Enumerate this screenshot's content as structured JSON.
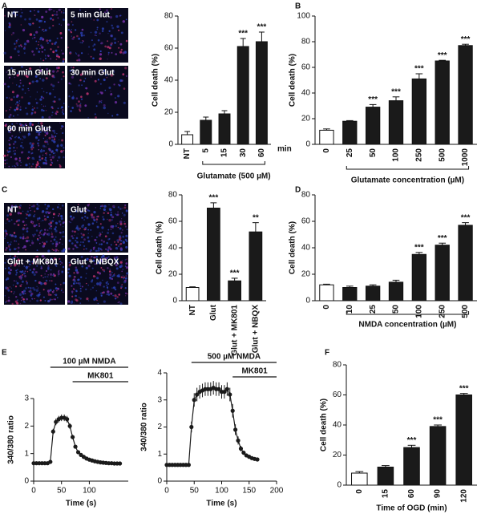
{
  "panel_letters": [
    "A",
    "B",
    "C",
    "D",
    "E",
    "F"
  ],
  "micrographs": {
    "A": [
      "NT",
      "5 min Glut",
      "15 min Glut",
      "30 min Glut",
      "60 min Glut"
    ],
    "C": [
      "NT",
      "Glut",
      "Glut + MK801",
      "Glut + NBQX"
    ]
  },
  "chart_data": [
    {
      "type": "bar",
      "ylabel": "Cell death (%)",
      "xlabel": "Glutamate (500 µM)",
      "x_unit": "min",
      "categories": [
        "NT",
        "5",
        "15",
        "30",
        "60"
      ],
      "values": [
        6,
        15,
        19,
        61,
        64
      ],
      "error": [
        2,
        2,
        2,
        5,
        6
      ],
      "colors": [
        "#ffffff",
        "#1a1a1a",
        "#1a1a1a",
        "#1a1a1a",
        "#1a1a1a"
      ],
      "annotations": [
        null,
        null,
        null,
        "***",
        "***"
      ],
      "ylim": [
        0,
        80
      ],
      "yticks": [
        0,
        20,
        40,
        60,
        80
      ]
    },
    {
      "type": "bar",
      "ylabel": "Cell death (%)",
      "xlabel": "Glutamate concentration (µM)",
      "categories": [
        "0",
        "25",
        "50",
        "100",
        "250",
        "500",
        "1000"
      ],
      "values": [
        11,
        18,
        29,
        34,
        51,
        65,
        77
      ],
      "error": [
        1,
        0.5,
        2,
        3,
        4,
        0.5,
        1
      ],
      "colors": [
        "#ffffff",
        "#1a1a1a",
        "#1a1a1a",
        "#1a1a1a",
        "#1a1a1a",
        "#1a1a1a",
        "#1a1a1a"
      ],
      "annotations": [
        null,
        null,
        "***",
        "***",
        "***",
        "***",
        "***"
      ],
      "ylim": [
        0,
        100
      ],
      "yticks": [
        0,
        20,
        40,
        60,
        80,
        100
      ]
    },
    {
      "type": "bar",
      "ylabel": "Cell death (%)",
      "categories": [
        "NT",
        "Glut",
        "Glut + MK801",
        "Glut + NBQX"
      ],
      "values": [
        10,
        70,
        15,
        52
      ],
      "error": [
        0.5,
        4,
        2,
        7
      ],
      "colors": [
        "#ffffff",
        "#1a1a1a",
        "#1a1a1a",
        "#1a1a1a"
      ],
      "annotations": [
        null,
        "***",
        "***",
        "**"
      ],
      "ylim": [
        0,
        80
      ],
      "yticks": [
        0,
        20,
        40,
        60,
        80
      ]
    },
    {
      "type": "bar",
      "ylabel": "Cell death (%)",
      "xlabel": "NMDA concentration (µM)",
      "categories": [
        "0",
        "10",
        "25",
        "50",
        "100",
        "250",
        "500"
      ],
      "values": [
        12,
        10,
        11,
        14,
        35,
        42,
        57
      ],
      "error": [
        0.5,
        1,
        1,
        1.5,
        1.5,
        1.5,
        2
      ],
      "colors": [
        "#ffffff",
        "#1a1a1a",
        "#1a1a1a",
        "#1a1a1a",
        "#1a1a1a",
        "#1a1a1a",
        "#1a1a1a"
      ],
      "annotations": [
        null,
        null,
        null,
        null,
        "***",
        "***",
        "***"
      ],
      "ylim": [
        0,
        80
      ],
      "yticks": [
        0,
        20,
        40,
        60,
        80
      ]
    },
    {
      "type": "line",
      "ylabel": "340/380 ratio",
      "xlabel": "Time (s)",
      "treatments": [
        {
          "label": "100 µM NMDA",
          "start": 30,
          "end": 170
        },
        {
          "label": "MK801",
          "start": 70,
          "end": 170
        }
      ],
      "x": [
        0,
        5,
        10,
        15,
        20,
        25,
        30,
        35,
        40,
        45,
        50,
        55,
        60,
        65,
        70,
        75,
        80,
        85,
        90,
        95,
        100,
        105,
        110,
        115,
        120,
        125,
        130,
        135,
        140,
        145,
        150,
        155
      ],
      "series": [
        {
          "color": "#1a1a1a",
          "values": [
            0.65,
            0.65,
            0.65,
            0.65,
            0.65,
            0.65,
            0.7,
            1.8,
            2.15,
            2.25,
            2.3,
            2.3,
            2.25,
            2.0,
            1.6,
            1.25,
            1.05,
            0.95,
            0.88,
            0.82,
            0.78,
            0.75,
            0.72,
            0.7,
            0.68,
            0.67,
            0.66,
            0.65,
            0.65,
            0.64,
            0.64,
            0.64
          ],
          "error": [
            0.02,
            0.02,
            0.02,
            0.02,
            0.02,
            0.02,
            0.03,
            0.1,
            0.12,
            0.12,
            0.12,
            0.12,
            0.12,
            0.1,
            0.08,
            0.06,
            0.05,
            0.04,
            0.03,
            0.03,
            0.03,
            0.03,
            0.02,
            0.02,
            0.02,
            0.02,
            0.02,
            0.02,
            0.02,
            0.02,
            0.02,
            0.02
          ]
        }
      ],
      "xlim": [
        0,
        170
      ],
      "xticks": [
        0,
        50,
        100
      ],
      "ylim": [
        0,
        3
      ],
      "yticks": [
        0,
        1,
        2,
        3
      ]
    },
    {
      "type": "line",
      "ylabel": "340/380 ratio",
      "xlabel": "Time (s)",
      "treatments": [
        {
          "label": "500 µM NMDA",
          "start": 45,
          "end": 200
        },
        {
          "label": "MK801",
          "start": 120,
          "end": 200
        }
      ],
      "x": [
        0,
        5,
        10,
        15,
        20,
        25,
        30,
        35,
        40,
        45,
        50,
        55,
        60,
        65,
        70,
        75,
        80,
        85,
        90,
        95,
        100,
        105,
        110,
        115,
        120,
        125,
        130,
        135,
        140,
        145,
        150,
        155,
        160,
        165
      ],
      "series": [
        {
          "color": "#1a1a1a",
          "values": [
            0.6,
            0.6,
            0.6,
            0.6,
            0.6,
            0.6,
            0.6,
            0.6,
            0.6,
            2.0,
            3.0,
            3.2,
            3.3,
            3.35,
            3.4,
            3.4,
            3.4,
            3.45,
            3.4,
            3.4,
            3.3,
            3.3,
            3.4,
            3.2,
            2.6,
            1.9,
            1.5,
            1.2,
            1.05,
            0.95,
            0.9,
            0.85,
            0.82,
            0.8
          ],
          "error": [
            0.03,
            0.03,
            0.03,
            0.03,
            0.03,
            0.03,
            0.03,
            0.03,
            0.03,
            0.2,
            0.25,
            0.25,
            0.25,
            0.25,
            0.25,
            0.25,
            0.25,
            0.25,
            0.25,
            0.25,
            0.25,
            0.25,
            0.25,
            0.25,
            0.25,
            0.2,
            0.15,
            0.1,
            0.08,
            0.06,
            0.05,
            0.05,
            0.04,
            0.04
          ]
        }
      ],
      "xlim": [
        0,
        200
      ],
      "xticks": [
        0,
        50,
        100,
        150,
        200
      ],
      "ylim": [
        0,
        4
      ],
      "yticks": [
        0,
        1,
        2,
        3,
        4
      ]
    },
    {
      "type": "bar",
      "ylabel": "Cell death (%)",
      "xlabel": "Time of OGD (min)",
      "categories": [
        "0",
        "15",
        "60",
        "90",
        "120"
      ],
      "values": [
        8,
        12,
        25,
        39,
        60
      ],
      "error": [
        1,
        1,
        1.5,
        1,
        1
      ],
      "colors": [
        "#ffffff",
        "#1a1a1a",
        "#1a1a1a",
        "#1a1a1a",
        "#1a1a1a"
      ],
      "annotations": [
        null,
        null,
        "***",
        "***",
        "***"
      ],
      "ylim": [
        0,
        80
      ],
      "yticks": [
        0,
        20,
        40,
        60,
        80
      ]
    }
  ]
}
